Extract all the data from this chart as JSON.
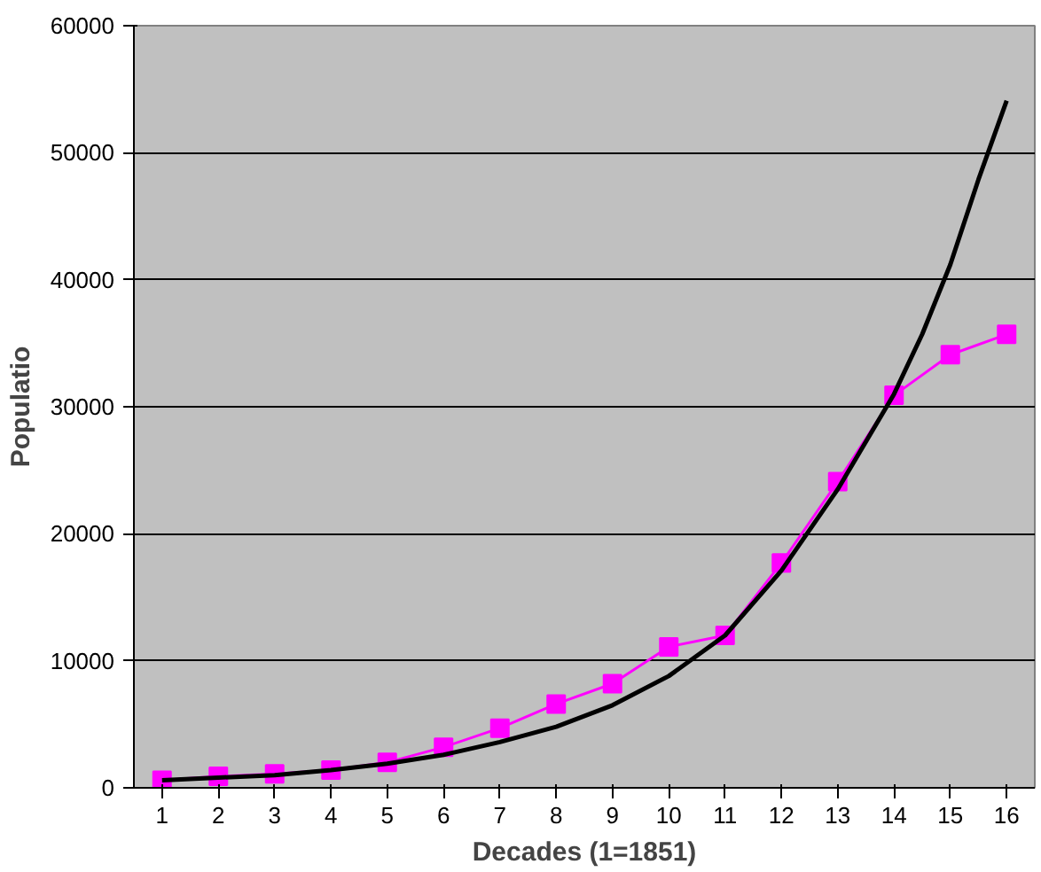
{
  "chart_data": {
    "type": "line",
    "xlabel": "Decades (1=1851)",
    "ylabel": "Populatio",
    "xlim": [
      0.5,
      16.5
    ],
    "xticks": [
      1,
      2,
      3,
      4,
      5,
      6,
      7,
      8,
      9,
      10,
      11,
      12,
      13,
      14,
      15,
      16
    ],
    "ylim": [
      0,
      60000
    ],
    "yticks": [
      0,
      10000,
      20000,
      30000,
      40000,
      50000,
      60000
    ],
    "grid": "y",
    "series": [
      {
        "color": "#ff00ff",
        "marker": "square",
        "x": [
          1,
          2,
          3,
          4,
          5,
          6,
          7,
          8,
          9,
          10,
          11,
          12,
          13,
          14,
          15,
          16
        ],
        "values": [
          600,
          900,
          1100,
          1400,
          2000,
          3200,
          4700,
          6600,
          8200,
          11100,
          12000,
          17700,
          24100,
          30900,
          34100,
          35700
        ]
      },
      {
        "color": "#000000",
        "marker": "none",
        "x": [
          1,
          2,
          3,
          4,
          5,
          6,
          7,
          8,
          9,
          10,
          11,
          12,
          13,
          14,
          14.5,
          15,
          15.5,
          16
        ],
        "values": [
          600,
          800,
          1000,
          1400,
          1900,
          2600,
          3600,
          4800,
          6500,
          8800,
          12000,
          17100,
          23500,
          31000,
          35700,
          41200,
          47900,
          54100
        ]
      }
    ]
  }
}
